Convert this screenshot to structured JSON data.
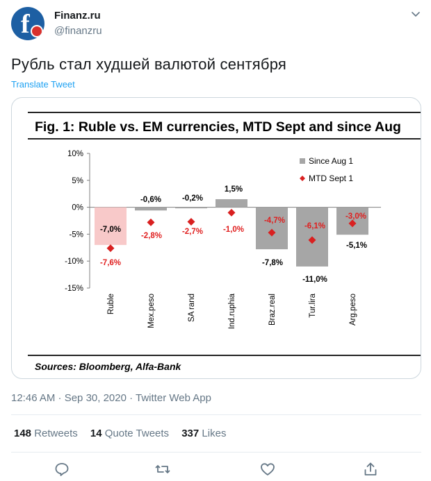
{
  "author": {
    "name": "Finanz.ru",
    "handle": "@finanzru",
    "avatar_letter": "f"
  },
  "tweet": {
    "text": "Рубль стал худшей валютой сентября",
    "translate_label": "Translate Tweet",
    "timestamp": "12:46 AM · Sep 30, 2020 · Twitter Web App"
  },
  "stats": {
    "retweets_count": "148",
    "retweets_label": "Retweets",
    "quote_count": "14",
    "quote_label": "Quote Tweets",
    "likes_count": "337",
    "likes_label": "Likes"
  },
  "icons": {
    "caret": "chevron-down-icon",
    "reply": "reply-icon",
    "retweet": "retweet-icon",
    "like": "heart-icon",
    "share": "share-icon"
  },
  "colors": {
    "accent": "#1da1f2",
    "muted": "#657786",
    "bar_gray": "#a6a6a6",
    "bar_pink": "#f8c9c9",
    "marker_red": "#d92020"
  },
  "chart_data": {
    "type": "bar",
    "title": "Fig. 1: Ruble vs. EM currencies, MTD Sept and since Aug",
    "source": "Sources: Bloomberg, Alfa-Bank",
    "categories": [
      "Ruble",
      "Mex.peso",
      "SA rand",
      "Ind.ruphia",
      "Braz.real",
      "Tur.lira",
      "Arg.peso"
    ],
    "series": [
      {
        "name": "Since Aug 1",
        "kind": "bar",
        "values": [
          -7.0,
          -0.6,
          -0.2,
          1.5,
          -7.8,
          -11.0,
          -5.1
        ],
        "labels": [
          "-7,0%",
          "-0,6%",
          "-0,2%",
          "1,5%",
          "-7,8%",
          "-11,0%",
          "-5,1%"
        ]
      },
      {
        "name": "MTD Sept 1",
        "kind": "marker",
        "values": [
          -7.6,
          -2.8,
          -2.7,
          -1.0,
          -4.7,
          -6.1,
          -3.0
        ],
        "labels": [
          "-7,6%",
          "-2,8%",
          "-2,7%",
          "-1,0%",
          "-4,7%",
          "-6,1%",
          "-3,0%"
        ]
      }
    ],
    "yticks": [
      10,
      5,
      0,
      -5,
      -10,
      -15
    ],
    "ytick_labels": [
      "10%",
      "5%",
      "0%",
      "-5%",
      "-10%",
      "-15%"
    ],
    "ylim": [
      -15,
      10
    ],
    "legend": "top-right",
    "grid": false
  }
}
